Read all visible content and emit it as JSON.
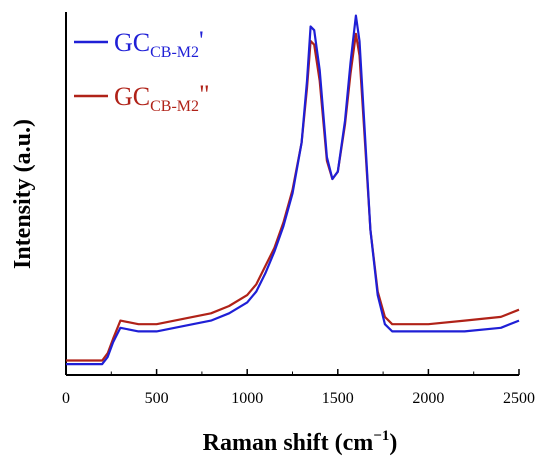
{
  "chart_data": {
    "type": "line",
    "title": "",
    "xlabel": "Raman shift (cm",
    "xlabel_sup": "−1",
    "xlabel_suffix": ")",
    "ylabel": "Intensity (a.u.)",
    "xlim": [
      0,
      2500
    ],
    "ylim": [
      0,
      1
    ],
    "grid": false,
    "legend_position": "top-left",
    "x_ticks": [
      0,
      500,
      1000,
      1500,
      2000,
      2500
    ],
    "y_ticks_shown": false,
    "series": [
      {
        "name_main": "GC",
        "name_sub": "CB-M2",
        "name_suffix": "'",
        "color": "#1f1fd6",
        "points": [
          [
            0,
            0.03
          ],
          [
            200,
            0.03
          ],
          [
            230,
            0.05
          ],
          [
            260,
            0.09
          ],
          [
            300,
            0.13
          ],
          [
            400,
            0.12
          ],
          [
            500,
            0.12
          ],
          [
            600,
            0.13
          ],
          [
            700,
            0.14
          ],
          [
            800,
            0.15
          ],
          [
            900,
            0.17
          ],
          [
            1000,
            0.2
          ],
          [
            1050,
            0.23
          ],
          [
            1100,
            0.28
          ],
          [
            1150,
            0.34
          ],
          [
            1200,
            0.41
          ],
          [
            1250,
            0.5
          ],
          [
            1300,
            0.64
          ],
          [
            1330,
            0.81
          ],
          [
            1350,
            0.96
          ],
          [
            1370,
            0.95
          ],
          [
            1400,
            0.84
          ],
          [
            1440,
            0.6
          ],
          [
            1470,
            0.54
          ],
          [
            1500,
            0.56
          ],
          [
            1540,
            0.7
          ],
          [
            1570,
            0.86
          ],
          [
            1600,
            0.99
          ],
          [
            1620,
            0.92
          ],
          [
            1650,
            0.66
          ],
          [
            1680,
            0.4
          ],
          [
            1720,
            0.22
          ],
          [
            1760,
            0.14
          ],
          [
            1800,
            0.12
          ],
          [
            2000,
            0.12
          ],
          [
            2200,
            0.12
          ],
          [
            2400,
            0.13
          ],
          [
            2500,
            0.15
          ]
        ]
      },
      {
        "name_main": "GC",
        "name_sub": "CB-M2",
        "name_suffix": "\"",
        "color": "#b02218",
        "points": [
          [
            0,
            0.04
          ],
          [
            200,
            0.04
          ],
          [
            230,
            0.06
          ],
          [
            260,
            0.1
          ],
          [
            300,
            0.15
          ],
          [
            400,
            0.14
          ],
          [
            500,
            0.14
          ],
          [
            600,
            0.15
          ],
          [
            700,
            0.16
          ],
          [
            800,
            0.17
          ],
          [
            900,
            0.19
          ],
          [
            1000,
            0.22
          ],
          [
            1050,
            0.25
          ],
          [
            1100,
            0.3
          ],
          [
            1150,
            0.35
          ],
          [
            1200,
            0.42
          ],
          [
            1250,
            0.51
          ],
          [
            1300,
            0.64
          ],
          [
            1330,
            0.79
          ],
          [
            1350,
            0.92
          ],
          [
            1370,
            0.91
          ],
          [
            1400,
            0.81
          ],
          [
            1440,
            0.59
          ],
          [
            1470,
            0.54
          ],
          [
            1500,
            0.56
          ],
          [
            1540,
            0.69
          ],
          [
            1570,
            0.83
          ],
          [
            1600,
            0.94
          ],
          [
            1620,
            0.88
          ],
          [
            1650,
            0.64
          ],
          [
            1680,
            0.4
          ],
          [
            1720,
            0.23
          ],
          [
            1760,
            0.16
          ],
          [
            1800,
            0.14
          ],
          [
            2000,
            0.14
          ],
          [
            2200,
            0.15
          ],
          [
            2400,
            0.16
          ],
          [
            2500,
            0.18
          ]
        ]
      }
    ]
  }
}
